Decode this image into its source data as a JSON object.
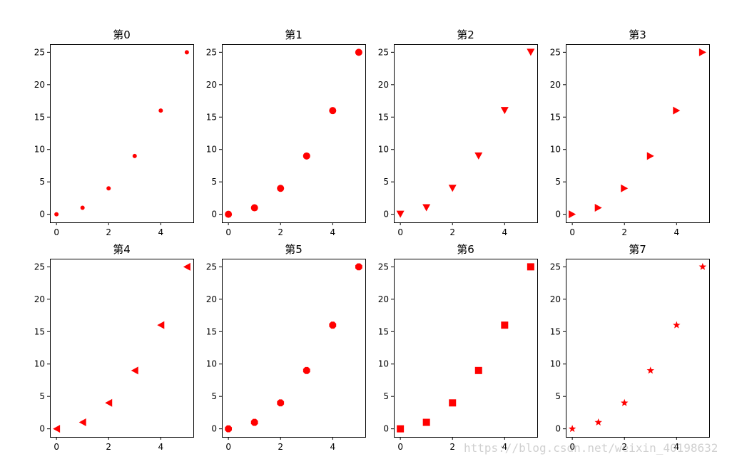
{
  "marker_color": "#ff0000",
  "watermark": "https://blog.csdn.net/weixin_40198632",
  "chart_data": [
    {
      "type": "scatter",
      "title": "第0",
      "marker": "point",
      "x": [
        0,
        1,
        2,
        3,
        4,
        5
      ],
      "y": [
        0,
        1,
        4,
        9,
        16,
        25
      ],
      "xlim": [
        -0.25,
        5.25
      ],
      "ylim": [
        -1.25,
        26.25
      ],
      "xticks": [
        0,
        2,
        4
      ],
      "yticks": [
        0,
        5,
        10,
        15,
        20,
        25
      ]
    },
    {
      "type": "scatter",
      "title": "第1",
      "marker": "circle",
      "x": [
        0,
        1,
        2,
        3,
        4,
        5
      ],
      "y": [
        0,
        1,
        4,
        9,
        16,
        25
      ],
      "xlim": [
        -0.25,
        5.25
      ],
      "ylim": [
        -1.25,
        26.25
      ],
      "xticks": [
        0,
        2,
        4
      ],
      "yticks": [
        0,
        5,
        10,
        15,
        20,
        25
      ]
    },
    {
      "type": "scatter",
      "title": "第2",
      "marker": "triangle-down",
      "x": [
        0,
        1,
        2,
        3,
        4,
        5
      ],
      "y": [
        0,
        1,
        4,
        9,
        16,
        25
      ],
      "xlim": [
        -0.25,
        5.25
      ],
      "ylim": [
        -1.25,
        26.25
      ],
      "xticks": [
        0,
        2,
        4
      ],
      "yticks": [
        0,
        5,
        10,
        15,
        20,
        25
      ]
    },
    {
      "type": "scatter",
      "title": "第3",
      "marker": "triangle-right",
      "x": [
        0,
        1,
        2,
        3,
        4,
        5
      ],
      "y": [
        0,
        1,
        4,
        9,
        16,
        25
      ],
      "xlim": [
        -0.25,
        5.25
      ],
      "ylim": [
        -1.25,
        26.25
      ],
      "xticks": [
        0,
        2,
        4
      ],
      "yticks": [
        0,
        5,
        10,
        15,
        20,
        25
      ]
    },
    {
      "type": "scatter",
      "title": "第4",
      "marker": "triangle-left",
      "x": [
        0,
        1,
        2,
        3,
        4,
        5
      ],
      "y": [
        0,
        1,
        4,
        9,
        16,
        25
      ],
      "xlim": [
        -0.25,
        5.25
      ],
      "ylim": [
        -1.25,
        26.25
      ],
      "xticks": [
        0,
        2,
        4
      ],
      "yticks": [
        0,
        5,
        10,
        15,
        20,
        25
      ]
    },
    {
      "type": "scatter",
      "title": "第5",
      "marker": "octagon",
      "x": [
        0,
        1,
        2,
        3,
        4,
        5
      ],
      "y": [
        0,
        1,
        4,
        9,
        16,
        25
      ],
      "xlim": [
        -0.25,
        5.25
      ],
      "ylim": [
        -1.25,
        26.25
      ],
      "xticks": [
        0,
        2,
        4
      ],
      "yticks": [
        0,
        5,
        10,
        15,
        20,
        25
      ]
    },
    {
      "type": "scatter",
      "title": "第6",
      "marker": "square",
      "x": [
        0,
        1,
        2,
        3,
        4,
        5
      ],
      "y": [
        0,
        1,
        4,
        9,
        16,
        25
      ],
      "xlim": [
        -0.25,
        5.25
      ],
      "ylim": [
        -1.25,
        26.25
      ],
      "xticks": [
        0,
        2,
        4
      ],
      "yticks": [
        0,
        5,
        10,
        15,
        20,
        25
      ]
    },
    {
      "type": "scatter",
      "title": "第7",
      "marker": "star",
      "x": [
        0,
        1,
        2,
        3,
        4,
        5
      ],
      "y": [
        0,
        1,
        4,
        9,
        16,
        25
      ],
      "xlim": [
        -0.25,
        5.25
      ],
      "ylim": [
        -1.25,
        26.25
      ],
      "xticks": [
        0,
        2,
        4
      ],
      "yticks": [
        0,
        5,
        10,
        15,
        20,
        25
      ]
    }
  ]
}
